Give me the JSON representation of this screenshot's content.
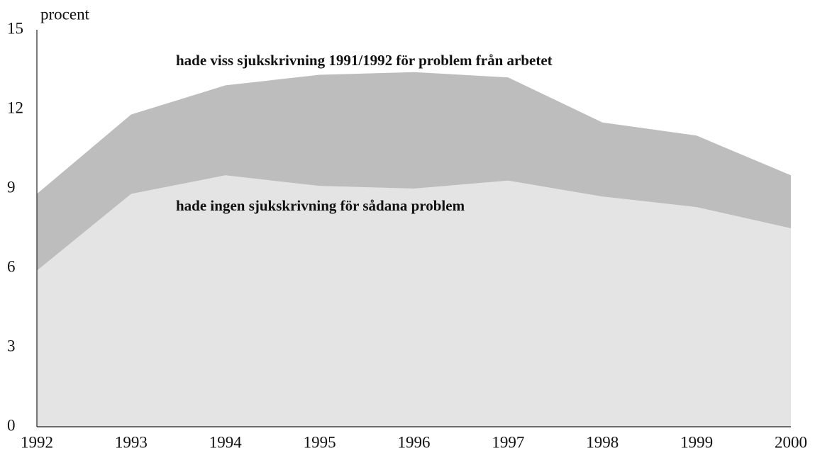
{
  "chart_data": {
    "type": "area",
    "stacked": true,
    "y_label": "procent",
    "x": [
      1992,
      1993,
      1994,
      1995,
      1996,
      1997,
      1998,
      1999,
      2000
    ],
    "xlim": [
      1992,
      2000
    ],
    "xticks": [
      1992,
      1993,
      1994,
      1995,
      1996,
      1997,
      1998,
      1999,
      2000
    ],
    "ylim": [
      0,
      15
    ],
    "yticks": [
      0,
      3,
      6,
      9,
      12,
      15
    ],
    "grid": false,
    "series": [
      {
        "name": "hade ingen sjukskrivning för sådana problem",
        "color": "#e4e4e4",
        "values": [
          5.9,
          8.8,
          9.5,
          9.1,
          9.0,
          9.3,
          8.7,
          8.3,
          7.5
        ]
      },
      {
        "name": "hade viss sjukskrivning 1991/1992 för problem från arbetet",
        "color": "#bdbdbd",
        "values": [
          2.9,
          3.0,
          3.4,
          4.2,
          4.4,
          3.9,
          2.8,
          2.7,
          2.0
        ]
      }
    ]
  }
}
